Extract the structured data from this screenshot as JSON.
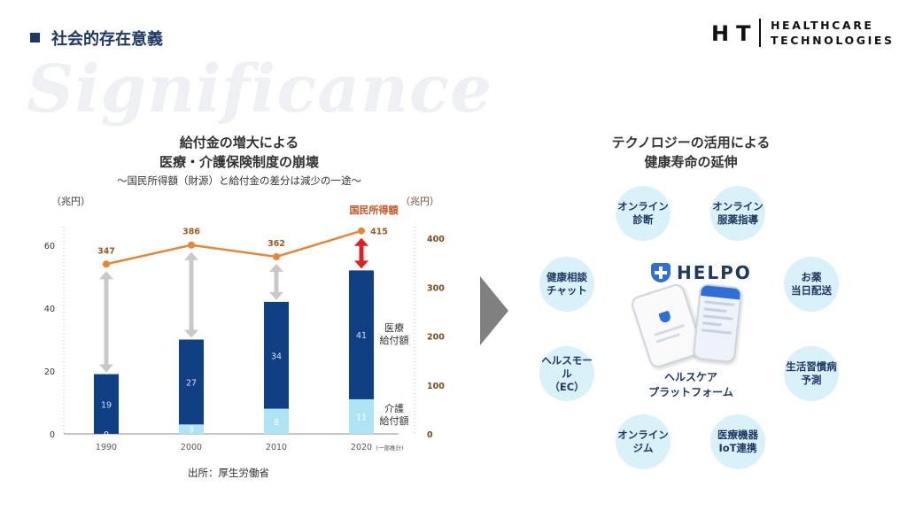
{
  "header": {
    "section_title": "社会的存在意義",
    "watermark": "Significance",
    "logo_ht": "HT",
    "logo_line1": "HEALTHCARE",
    "logo_line2": "TECHNOLOGIES"
  },
  "left_panel": {
    "title_line1": "給付金の増大による",
    "title_line2": "医療・介護保険制度の崩壊",
    "subtitle": "〜国民所得額（財源）と給付金の差分は減少の一途〜",
    "source": "出所：厚生労働省"
  },
  "chart_data": {
    "type": "bar+line",
    "categories": [
      "1990",
      "2000",
      "2010",
      "2020"
    ],
    "category_note": "(一部推計)",
    "left_axis": {
      "unit": "（兆円）",
      "ticks": [
        0,
        20,
        40,
        60
      ],
      "range": [
        0,
        60
      ]
    },
    "right_axis": {
      "unit": "（兆円）",
      "ticks": [
        0,
        100,
        200,
        300,
        400
      ],
      "range": [
        0,
        400
      ]
    },
    "bar_series": [
      {
        "name": "介護給付額",
        "label_line1": "介護",
        "label_line2": "給付額",
        "values": [
          0,
          3,
          8,
          11
        ],
        "color": "#aee3f3"
      },
      {
        "name": "医療給付額",
        "label_line1": "医療",
        "label_line2": "給付額",
        "values": [
          19,
          27,
          34,
          41
        ],
        "color": "#103f84"
      }
    ],
    "line_series": {
      "name": "国民所得額",
      "values": [
        347,
        386,
        362,
        415
      ],
      "color": "#e5863a"
    },
    "gap_arrow_color": "#c8c8c8",
    "highlight_arrow_color": "#e02020"
  },
  "right_panel": {
    "title_line1": "テクノロジーの活用による",
    "title_line2": "健康寿命の延伸",
    "bubbles": [
      "オンライン\n診断",
      "オンライン\n服薬指導",
      "お薬\n当日配送",
      "生活習慣病\n予測",
      "医療機器\nIoT連携",
      "オンライン\nジム",
      "ヘルスモール\n（EC）",
      "健康相談\nチャット"
    ],
    "platform_logo": "HELPO",
    "platform_label": "ヘルスケア\nプラットフォーム"
  },
  "colors": {
    "navy": "#1f3864",
    "bubble_bg": "#d9f1f8",
    "arrow_gray": "#808080"
  }
}
